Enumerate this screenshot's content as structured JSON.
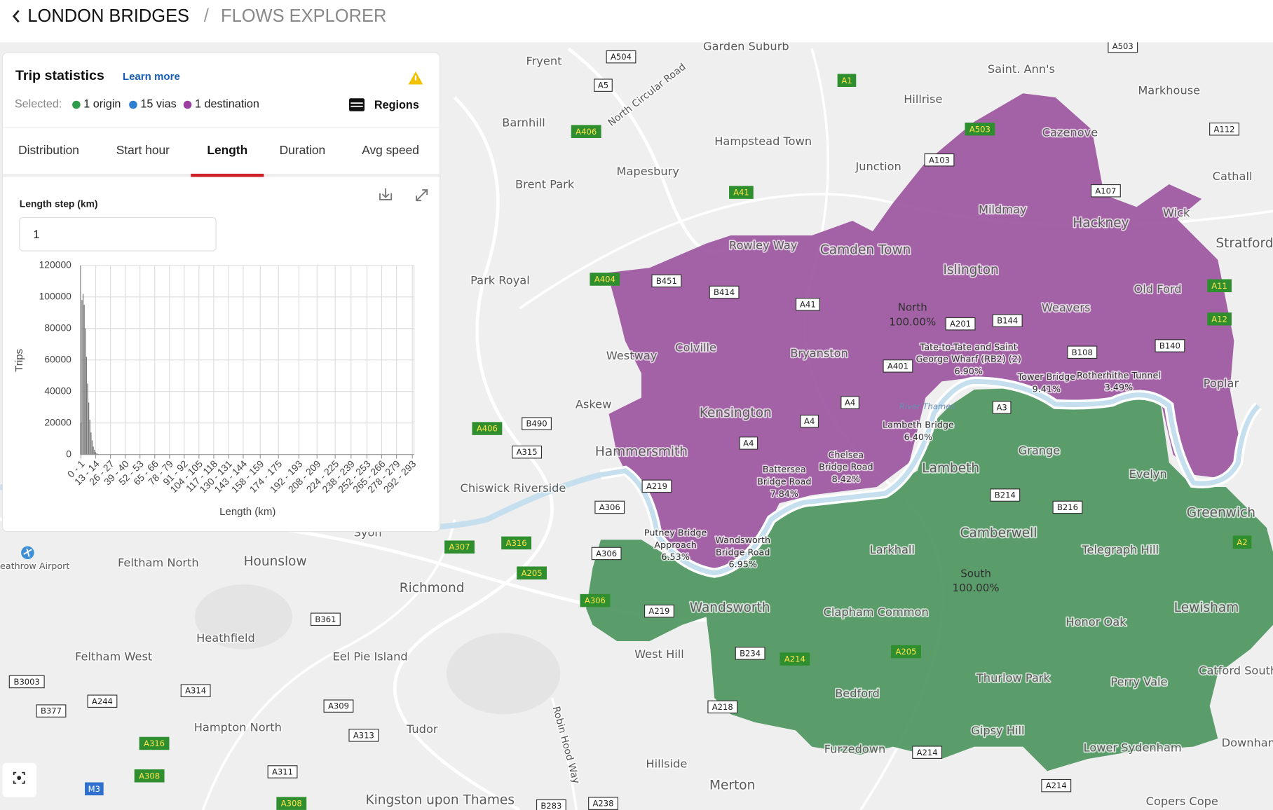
{
  "header": {
    "back_title": "LONDON BRIDGES",
    "separator": "/",
    "page": "FLOWS EXPLORER"
  },
  "panel": {
    "title": "Trip statistics",
    "learn_more": "Learn more",
    "selected_label": "Selected:",
    "selected": [
      {
        "text": "1 origin",
        "color": "#2e9c4a"
      },
      {
        "text": "15 vias",
        "color": "#2f7fd0"
      },
      {
        "text": "1 destination",
        "color": "#9b3fa0"
      }
    ],
    "regions_button": "Regions",
    "tabs": [
      "Distribution",
      "Start hour",
      "Length",
      "Duration",
      "Avg speed"
    ],
    "active_tab": 2,
    "step_label": "Length step (km)",
    "step_value": "1"
  },
  "chart_data": {
    "type": "histogram",
    "x_label": "Length (km)",
    "y_label": "Trips",
    "color": "#777777",
    "bins": [
      0,
      1,
      2,
      3,
      4,
      5,
      6,
      7,
      8,
      9,
      10,
      11,
      12,
      13,
      14,
      15,
      16
    ],
    "values": [
      20000,
      98000,
      102000,
      95000,
      80000,
      62000,
      45000,
      33000,
      22000,
      14000,
      9000,
      5000,
      3000,
      1500,
      800,
      400
    ],
    "xlim": [
      0,
      294
    ],
    "ylim": [
      0,
      120000
    ],
    "xticks": [
      {
        "value": 0,
        "label": "0 - 1"
      },
      {
        "value": 13,
        "label": "13 - 14"
      },
      {
        "value": 26,
        "label": "26 - 27"
      },
      {
        "value": 39,
        "label": "39 - 40"
      },
      {
        "value": 52,
        "label": "52 - 53"
      },
      {
        "value": 65,
        "label": "65 - 66"
      },
      {
        "value": 78,
        "label": "78 - 79"
      },
      {
        "value": 91,
        "label": "91 - 92"
      },
      {
        "value": 104,
        "label": "104 - 105"
      },
      {
        "value": 117,
        "label": "117 - 118"
      },
      {
        "value": 130,
        "label": "130 - 131"
      },
      {
        "value": 143,
        "label": "143 - 144"
      },
      {
        "value": 158,
        "label": "158 - 159"
      },
      {
        "value": 174,
        "label": "174 - 175"
      },
      {
        "value": 192,
        "label": "192 - 193"
      },
      {
        "value": 208,
        "label": "208 - 209"
      },
      {
        "value": 224,
        "label": "224 - 225"
      },
      {
        "value": 238,
        "label": "238 - 239"
      },
      {
        "value": 252,
        "label": "252 - 253"
      },
      {
        "value": 265,
        "label": "265 - 266"
      },
      {
        "value": 278,
        "label": "278 - 279"
      },
      {
        "value": 292,
        "label": "292 - 293"
      }
    ],
    "yticks": [
      0,
      20000,
      40000,
      60000,
      80000,
      100000,
      120000
    ],
    "grid": true
  },
  "map": {
    "places": [
      "Garden Suburb",
      "Fryent",
      "Saint. Ann's",
      "Markhouse",
      "Hillrise",
      "Barnhill",
      "Cazenove",
      "Hampstead Town",
      "Junction",
      "Mapesbury",
      "Cathall",
      "Brent Park",
      "Mildmay",
      "Wick",
      "Hackney",
      "Stratford",
      "Rowley Way",
      "Camden Town",
      "Islington",
      "Park Royal",
      "Old Ford",
      "Westway",
      "Colville",
      "Bryanston",
      "Weavers",
      "Poplar",
      "Askew",
      "Kensington",
      "Hammersmith",
      "Lambeth",
      "Grange",
      "Evelyn",
      "Chiswick Riverside",
      "Greenwich",
      "Camberwell",
      "Larkhall",
      "Telegraph Hill",
      "Syon",
      "Hounslow",
      "Feltham North",
      "Richmond",
      "Wandsworth",
      "Clapham Common",
      "Lewisham",
      "Honor Oak",
      "Heathfield",
      "Feltham West",
      "Eel Pie Island",
      "West Hill",
      "Catford South",
      "Thurlow Park",
      "Perry Vale",
      "Bedford",
      "Hampton North",
      "Tudor",
      "Gipsy Hill",
      "Furzedown",
      "Lower Sydenham",
      "Downham",
      "Hillside",
      "Merton",
      "Kingston upon Thames",
      "Copers Cope",
      "eathrow Airport"
    ],
    "rotated": [
      "North Circular Road",
      "Robin Hood Way"
    ],
    "river": "River Thames",
    "regions": [
      {
        "name": "North",
        "share": "100.00%",
        "color": "#9c56a0"
      },
      {
        "name": "South",
        "share": "100.00%",
        "color": "#4e9560"
      }
    ],
    "bridges": [
      {
        "lines": [
          "Tate-to-Tate and Saint",
          "George Wharf (RB2) (2)",
          "6.90%"
        ]
      },
      {
        "lines": [
          "Tower Bridge",
          "9.41%"
        ]
      },
      {
        "lines": [
          "Rotherhithe Tunnel",
          "3.49%"
        ]
      },
      {
        "lines": [
          "Lambeth Bridge",
          "6.40%"
        ]
      },
      {
        "lines": [
          "Chelsea",
          "Bridge Road",
          "8.42%"
        ]
      },
      {
        "lines": [
          "Battersea",
          "Bridge Road",
          "7.84%"
        ]
      },
      {
        "lines": [
          "Putney Bridge",
          "Approach",
          "6.53%"
        ]
      },
      {
        "lines": [
          "Wandsworth",
          "Bridge Road",
          "6.95%"
        ]
      }
    ],
    "roads": [
      {
        "text": "A504",
        "kind": "w"
      },
      {
        "text": "A5",
        "kind": "w"
      },
      {
        "text": "A406",
        "kind": "g"
      },
      {
        "text": "A1",
        "kind": "g"
      },
      {
        "text": "A503",
        "kind": "w"
      },
      {
        "text": "A112",
        "kind": "w"
      },
      {
        "text": "A503",
        "kind": "g"
      },
      {
        "text": "A103",
        "kind": "w"
      },
      {
        "text": "A107",
        "kind": "w"
      },
      {
        "text": "A41",
        "kind": "g"
      },
      {
        "text": "A404",
        "kind": "g"
      },
      {
        "text": "B451",
        "kind": "w"
      },
      {
        "text": "B414",
        "kind": "w"
      },
      {
        "text": "A41",
        "kind": "w"
      },
      {
        "text": "A201",
        "kind": "w"
      },
      {
        "text": "B144",
        "kind": "w"
      },
      {
        "text": "A401",
        "kind": "w"
      },
      {
        "text": "B108",
        "kind": "w"
      },
      {
        "text": "B140",
        "kind": "w"
      },
      {
        "text": "A11",
        "kind": "g"
      },
      {
        "text": "A12",
        "kind": "g"
      },
      {
        "text": "A4",
        "kind": "w"
      },
      {
        "text": "A4",
        "kind": "w"
      },
      {
        "text": "A4",
        "kind": "w"
      },
      {
        "text": "A3",
        "kind": "w"
      },
      {
        "text": "A406",
        "kind": "g"
      },
      {
        "text": "B490",
        "kind": "w"
      },
      {
        "text": "A315",
        "kind": "w"
      },
      {
        "text": "A219",
        "kind": "w"
      },
      {
        "text": "B214",
        "kind": "w"
      },
      {
        "text": "B216",
        "kind": "w"
      },
      {
        "text": "A306",
        "kind": "w"
      },
      {
        "text": "A307",
        "kind": "g"
      },
      {
        "text": "A316",
        "kind": "g"
      },
      {
        "text": "A205",
        "kind": "g"
      },
      {
        "text": "A306",
        "kind": "w"
      },
      {
        "text": "A306",
        "kind": "g"
      },
      {
        "text": "A219",
        "kind": "w"
      },
      {
        "text": "A2",
        "kind": "g"
      },
      {
        "text": "B361",
        "kind": "w"
      },
      {
        "text": "B234",
        "kind": "w"
      },
      {
        "text": "A214",
        "kind": "g"
      },
      {
        "text": "A205",
        "kind": "g"
      },
      {
        "text": "B3003",
        "kind": "w"
      },
      {
        "text": "A244",
        "kind": "w"
      },
      {
        "text": "A314",
        "kind": "w"
      },
      {
        "text": "A309",
        "kind": "w"
      },
      {
        "text": "B377",
        "kind": "w"
      },
      {
        "text": "A313",
        "kind": "w"
      },
      {
        "text": "A218",
        "kind": "w"
      },
      {
        "text": "A316",
        "kind": "g"
      },
      {
        "text": "A308",
        "kind": "g"
      },
      {
        "text": "A311",
        "kind": "w"
      },
      {
        "text": "M3",
        "kind": "m"
      },
      {
        "text": "A308",
        "kind": "g"
      },
      {
        "text": "B283",
        "kind": "w"
      },
      {
        "text": "A238",
        "kind": "w"
      },
      {
        "text": "A214",
        "kind": "w"
      },
      {
        "text": "A214",
        "kind": "w"
      }
    ]
  }
}
